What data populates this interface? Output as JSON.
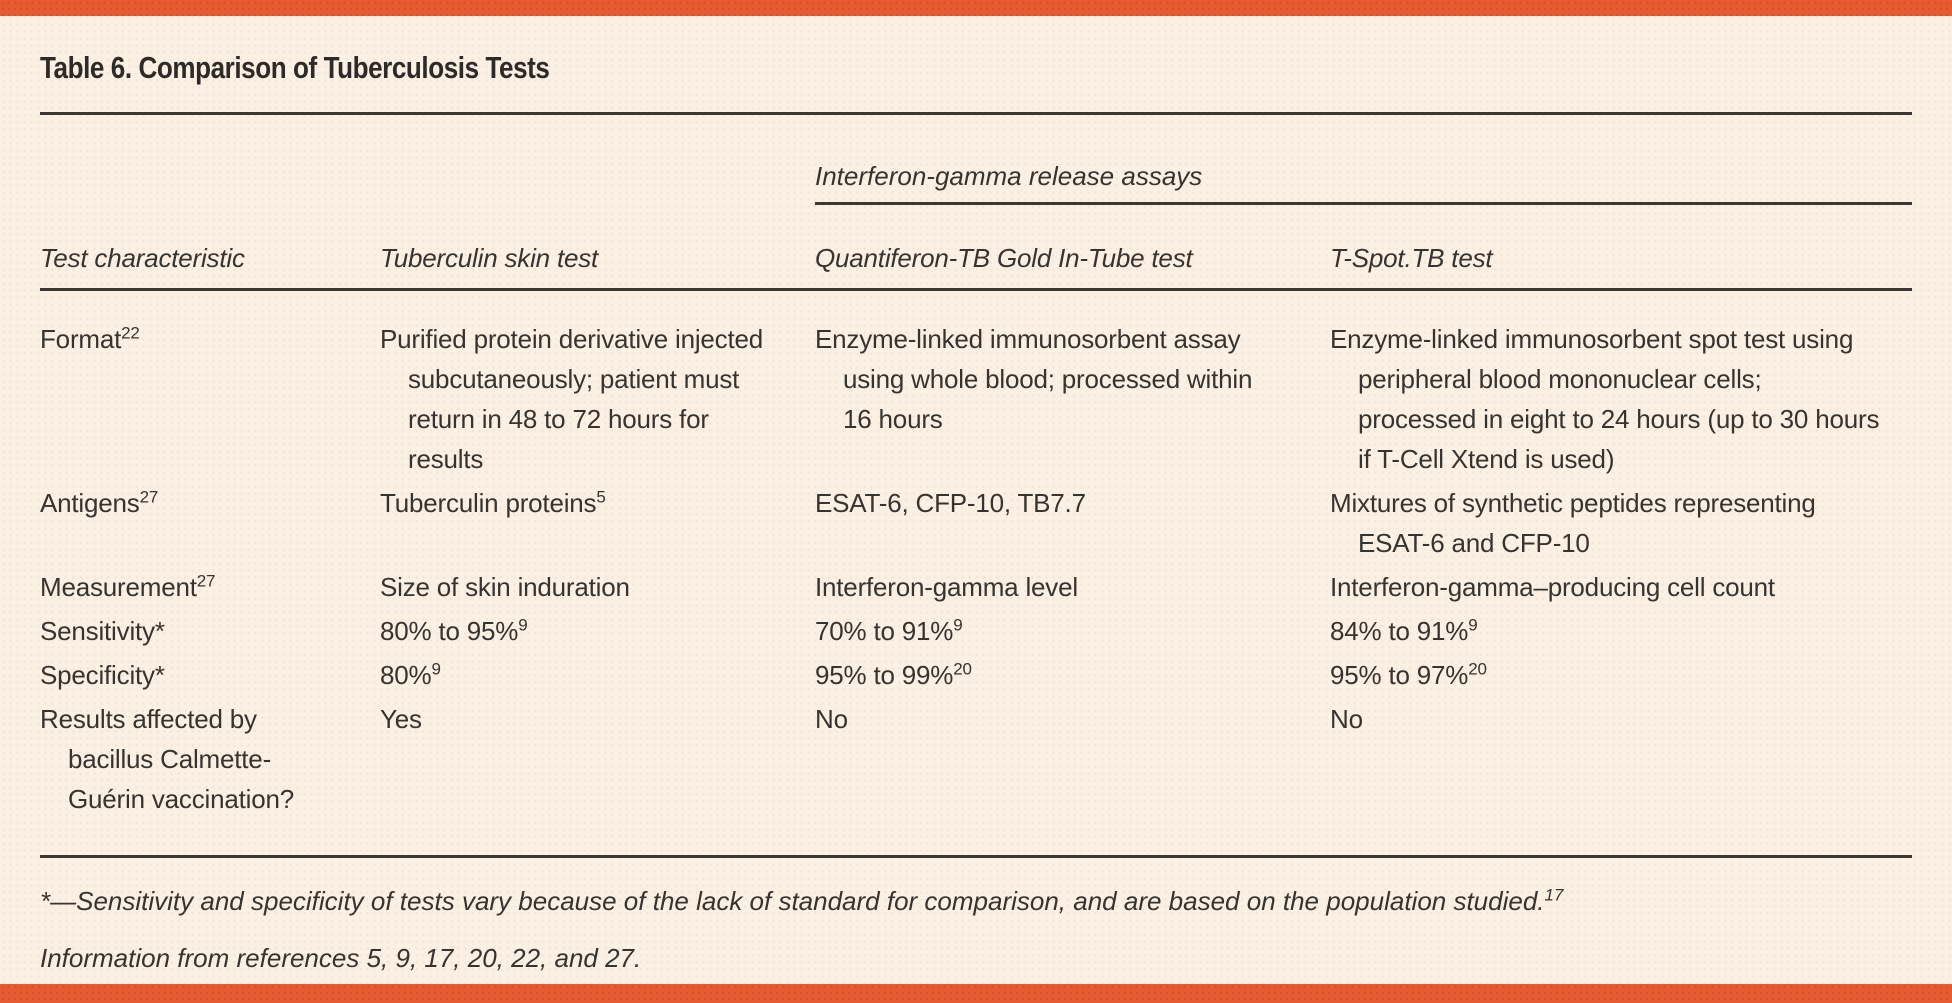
{
  "page": {
    "colors": {
      "accent": "#e75b33",
      "background": "#fbf0e4",
      "text": "#37332f",
      "rule": "#3b3733"
    }
  },
  "table": {
    "title": "Table 6. Comparison of Tuberculosis Tests",
    "group_header": "Interferon-gamma release assays",
    "columns": [
      "Test characteristic",
      "Tuberculin skin test",
      "Quantiferon-TB Gold In-Tube test",
      "T-Spot.TB test"
    ],
    "rows": [
      {
        "label": "Format^{22}",
        "tst": "Purified protein derivative injected subcutaneously; patient must return in 48 to 72 hours for results",
        "qft": "Enzyme-linked immunosorbent assay using whole blood; processed within 16 hours",
        "tspot": "Enzyme-linked immunosorbent spot test using peripheral blood mononuclear cells; processed in eight to 24 hours (up to 30 hours if T-Cell Xtend is used)"
      },
      {
        "label": "Antigens^{27}",
        "tst": "Tuberculin proteins^{5}",
        "qft": "ESAT-6, CFP-10, TB7.7",
        "tspot": "Mixtures of synthetic peptides representing ESAT-6 and CFP-10"
      },
      {
        "label": "Measurement^{27}",
        "tst": "Size of skin induration",
        "qft": "Interferon-gamma level",
        "tspot": "Interferon-gamma–producing cell count"
      },
      {
        "label": "Sensitivity*",
        "tst": "80% to 95%^{9}",
        "qft": "70% to 91%^{9}",
        "tspot": "84% to 91%^{9}"
      },
      {
        "label": "Specificity*",
        "tst": "80%^{9}",
        "qft": "95% to 99%^{20}",
        "tspot": "95% to 97%^{20}"
      },
      {
        "label": "Results affected by bacillus Calmette-Guérin vaccination?",
        "tst": "Yes",
        "qft": "No",
        "tspot": "No"
      }
    ],
    "footnotes": [
      "*—Sensitivity and specificity of tests vary because of the lack of standard for comparison, and are based on the population studied.^{17}",
      "Information from references 5, 9, 17, 20, 22, and 27."
    ]
  }
}
